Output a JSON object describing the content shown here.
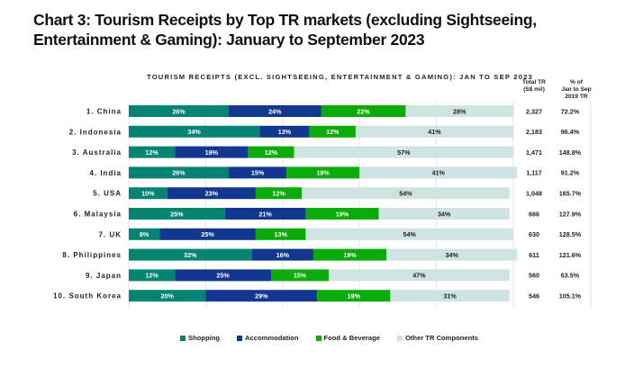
{
  "title": "Chart 3: Tourism Receipts by Top TR markets (excluding Sightseeing, Entertainment & Gaming): January to September 2023",
  "chart_data": {
    "type": "bar",
    "orientation": "horizontal",
    "stacked": "100%",
    "title": "TOURISM RECEIPTS (EXCL. SIGHTSEEING, ENTERTAINMENT & GAMING): JAN TO SEP 2023",
    "xlabel": "",
    "ylabel": "",
    "xlim": [
      0,
      100
    ],
    "grid": true,
    "legend_position": "bottom",
    "categories": [
      "1. China",
      "2. Indonesia",
      "3. Australia",
      "4. India",
      "5. USA",
      "6. Malaysia",
      "7. UK",
      "8. Philippines",
      "9. Japan",
      "10. South Korea"
    ],
    "series": [
      {
        "name": "Shopping",
        "color": "#058373",
        "values": [
          26,
          34,
          12,
          26,
          10,
          25,
          8,
          32,
          12,
          20
        ]
      },
      {
        "name": "Accommodation",
        "color": "#12378f",
        "values": [
          24,
          13,
          19,
          15,
          23,
          21,
          25,
          16,
          25,
          29
        ]
      },
      {
        "name": "Food & Beverage",
        "color": "#0aab0a",
        "values": [
          22,
          12,
          12,
          19,
          12,
          19,
          13,
          19,
          15,
          19
        ]
      },
      {
        "name": "Other TR Components",
        "color": "#cfe3e3",
        "values": [
          28,
          41,
          57,
          41,
          54,
          34,
          54,
          34,
          47,
          31
        ]
      }
    ],
    "table": {
      "headers": {
        "total": [
          "Total TR",
          "(S$ mil)"
        ],
        "pct": [
          "% of",
          "Jan to Sep",
          "2019 TR"
        ]
      },
      "total_tr": [
        "2,327",
        "2,183",
        "1,471",
        "1,117",
        "1,048",
        "666",
        "630",
        "611",
        "560",
        "546"
      ],
      "pct_2019": [
        "72.2%",
        "96.4%",
        "148.8%",
        "91.2%",
        "165.7%",
        "127.9%",
        "128.5%",
        "121.6%",
        "63.5%",
        "105.1%"
      ]
    }
  }
}
